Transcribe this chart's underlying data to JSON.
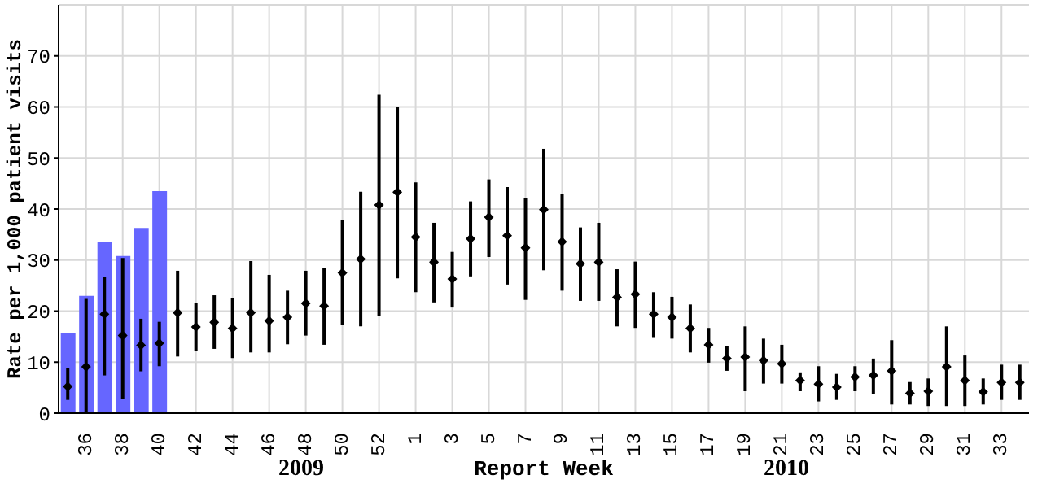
{
  "chart_data": {
    "type": "bar",
    "xlabel": "Report Week",
    "ylabel": "Rate per 1,000 patient visits",
    "categories": [
      null,
      "36",
      null,
      "38",
      null,
      "40",
      null,
      "42",
      null,
      "44",
      null,
      "46",
      null,
      "48",
      null,
      "50",
      null,
      "52",
      null,
      "1",
      null,
      "3",
      null,
      "5",
      null,
      "7",
      null,
      "9",
      null,
      "11",
      null,
      "13",
      null,
      "15",
      null,
      "17",
      null,
      "19",
      null,
      "21",
      null,
      "23",
      null,
      "25",
      null,
      "27",
      null,
      "29",
      null,
      "31",
      null,
      "33",
      null
    ],
    "series": [
      {
        "color": "#6666ff",
        "values": [
          15.7,
          23,
          33.5,
          30.8,
          36.3,
          43.5,
          null,
          null,
          null,
          null,
          null,
          null,
          null,
          null,
          null,
          null,
          null,
          null,
          null,
          null,
          null,
          null,
          null,
          null,
          null,
          null,
          null,
          null,
          null,
          null,
          null,
          null,
          null,
          null,
          null,
          null,
          null,
          null,
          null,
          null,
          null,
          null,
          null,
          null,
          null,
          null,
          null,
          null,
          null,
          null,
          null,
          null,
          null
        ]
      },
      {
        "type": "scatter",
        "color": "#000000",
        "values": [
          5.2,
          9.1,
          19.4,
          15.2,
          13.3,
          13.7,
          19.7,
          16.9,
          17.8,
          16.6,
          19.7,
          18.1,
          18.8,
          21.5,
          21,
          27.5,
          30.2,
          40.8,
          43.3,
          34.5,
          29.6,
          26.3,
          34.2,
          38.4,
          34.8,
          32.4,
          39.9,
          33.6,
          29.3,
          29.6,
          22.7,
          23.3,
          19.4,
          18.8,
          16.6,
          13.4,
          10.7,
          11,
          10.3,
          9.7,
          6.4,
          5.7,
          5.1,
          7.1,
          7.4,
          8.3,
          3.9,
          4.3,
          9.1,
          6.4,
          4.2,
          6,
          6
        ],
        "errors": [
          [
            2.6,
            8.9
          ],
          [
            0,
            22.4
          ],
          [
            7.4,
            26.7
          ],
          [
            2.8,
            30.4
          ],
          [
            8.2,
            18.5
          ],
          [
            9.2,
            17.9
          ],
          [
            11.1,
            27.9
          ],
          [
            12.2,
            21.6
          ],
          [
            12.6,
            23.1
          ],
          [
            10.8,
            22.5
          ],
          [
            11.9,
            29.8
          ],
          [
            11.9,
            27.1
          ],
          [
            13.5,
            24
          ],
          [
            15.2,
            27.9
          ],
          [
            13.4,
            28.5
          ],
          [
            17.3,
            37.9
          ],
          [
            17,
            43.4
          ],
          [
            19,
            62.4
          ],
          [
            26.4,
            60
          ],
          [
            23.7,
            45.2
          ],
          [
            21.7,
            37.3
          ],
          [
            20.7,
            31.6
          ],
          [
            26.8,
            41.5
          ],
          [
            30.6,
            45.8
          ],
          [
            25.2,
            44.3
          ],
          [
            22.2,
            42.1
          ],
          [
            28,
            51.8
          ],
          [
            24,
            42.9
          ],
          [
            22,
            36.4
          ],
          [
            22,
            37.3
          ],
          [
            17,
            28.2
          ],
          [
            16.7,
            29.7
          ],
          [
            14.9,
            23.7
          ],
          [
            14.6,
            22.8
          ],
          [
            11.9,
            21.3
          ],
          [
            9.9,
            16.7
          ],
          [
            8.3,
            13.1
          ],
          [
            4.3,
            17
          ],
          [
            5.8,
            14.6
          ],
          [
            5.8,
            13.4
          ],
          [
            4.3,
            8
          ],
          [
            2.3,
            9.2
          ],
          [
            2.6,
            7.7
          ],
          [
            4.3,
            9.2
          ],
          [
            3.7,
            10.7
          ],
          [
            1.7,
            14.3
          ],
          [
            1.7,
            6.1
          ],
          [
            1.4,
            6.8
          ],
          [
            1.4,
            17
          ],
          [
            1.4,
            11.3
          ],
          [
            1.7,
            6.8
          ],
          [
            2.6,
            9.5
          ],
          [
            2.6,
            9.5
          ]
        ]
      }
    ],
    "ylim": [
      0,
      80
    ],
    "yticks": [
      0,
      10,
      20,
      30,
      40,
      50,
      60,
      70
    ],
    "grid": true,
    "marker": "diamond",
    "annotations": [
      "2009",
      "2010"
    ]
  }
}
